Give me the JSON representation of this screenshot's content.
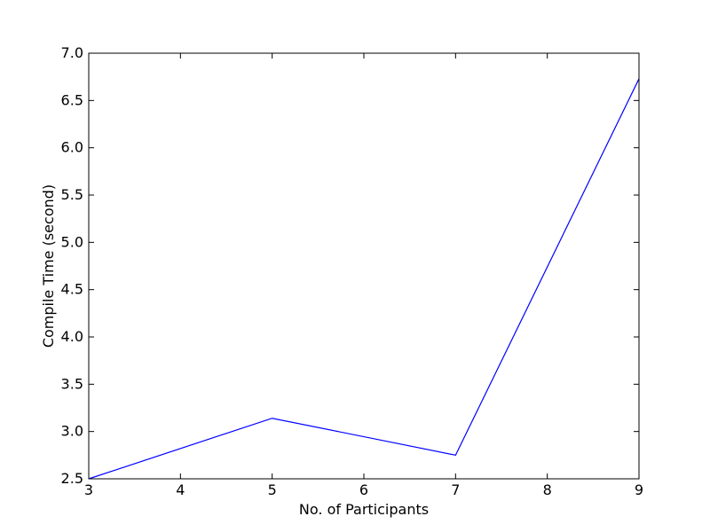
{
  "chart_data": {
    "type": "line",
    "title": "",
    "xlabel": "No. of Participants",
    "ylabel": "Compile Time (second)",
    "xlim": [
      3,
      9
    ],
    "ylim": [
      2.5,
      7.0
    ],
    "xticks": [
      3,
      4,
      5,
      6,
      7,
      8,
      9
    ],
    "yticks": [
      2.5,
      3.0,
      3.5,
      4.0,
      4.5,
      5.0,
      5.5,
      6.0,
      6.5,
      7.0
    ],
    "grid": false,
    "legend": "none",
    "series": [
      {
        "color": "#0000ff",
        "x": [
          3,
          5,
          7,
          9
        ],
        "y": [
          2.5,
          3.14,
          2.75,
          6.73
        ]
      }
    ]
  }
}
